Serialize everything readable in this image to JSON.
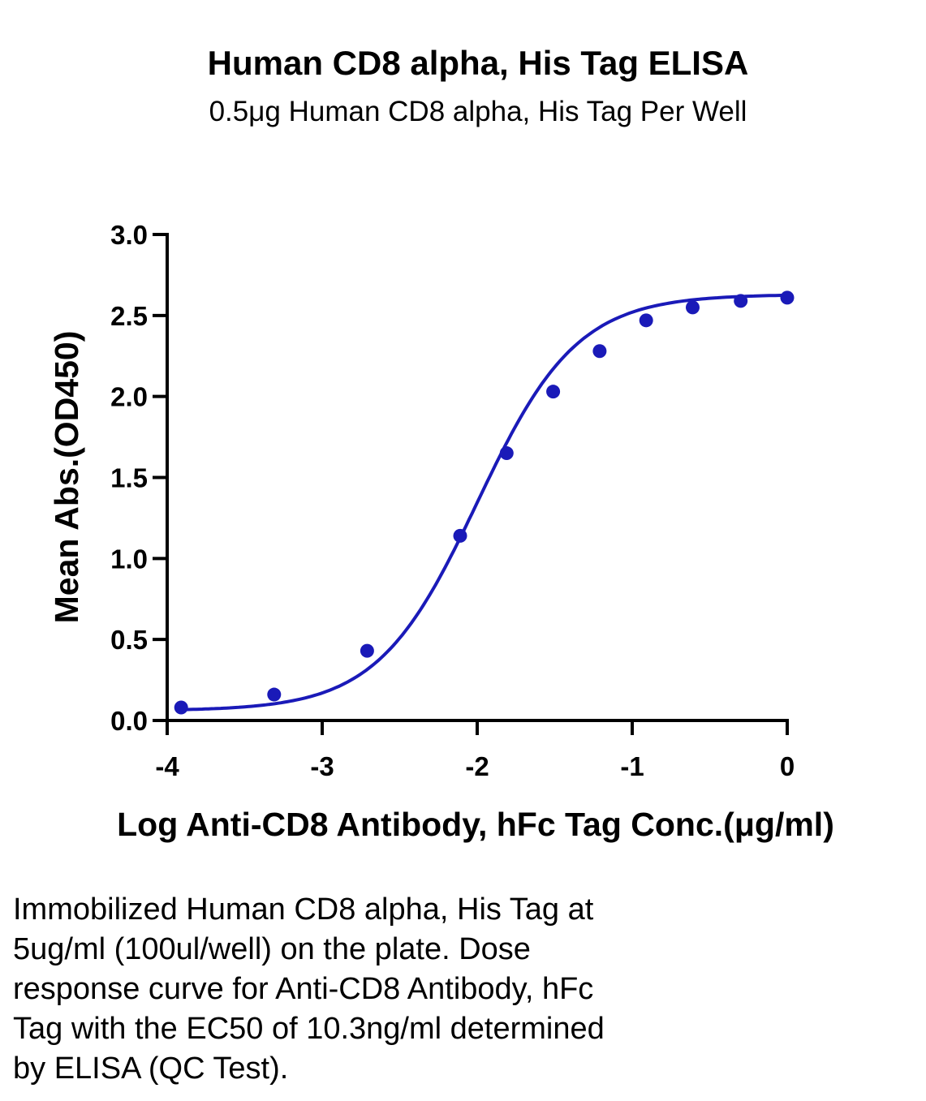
{
  "chart_data": {
    "type": "line",
    "title": "Human CD8 alpha, His Tag ELISA",
    "subtitle": "0.5μg Human CD8 alpha, His Tag Per Well",
    "xlabel": "Log Anti-CD8 Antibody, hFc Tag Conc.(μg/ml)",
    "ylabel": "Mean Abs.(OD450)",
    "xlim": [
      -4,
      0
    ],
    "ylim": [
      0,
      3.0
    ],
    "x_ticks": [
      "-4",
      "-3",
      "-2",
      "-1",
      "0"
    ],
    "y_ticks": [
      "0.0",
      "0.5",
      "1.0",
      "1.5",
      "2.0",
      "2.5",
      "3.0"
    ],
    "grid": false,
    "series": [
      {
        "color": "#1a1ab8",
        "x": [
          -3.91,
          -3.31,
          -2.71,
          -2.11,
          -1.81,
          -1.51,
          -1.21,
          -0.91,
          -0.61,
          -0.3,
          0.0
        ],
        "y": [
          0.08,
          0.16,
          0.43,
          1.14,
          1.65,
          2.03,
          2.28,
          2.47,
          2.55,
          2.59,
          2.61
        ]
      }
    ],
    "fit_curve": {
      "bottom": 0.06,
      "top": 2.63,
      "log_ec50": -2.0,
      "hill_slope": 1.35
    }
  },
  "caption": {
    "lines": [
      "Immobilized Human CD8 alpha, His Tag at",
      "5ug/ml (100ul/well) on the plate. Dose",
      "response curve for Anti-CD8 Antibody, hFc",
      "Tag with the EC50 of 10.3ng/ml determined",
      "by ELISA (QC Test)."
    ]
  }
}
